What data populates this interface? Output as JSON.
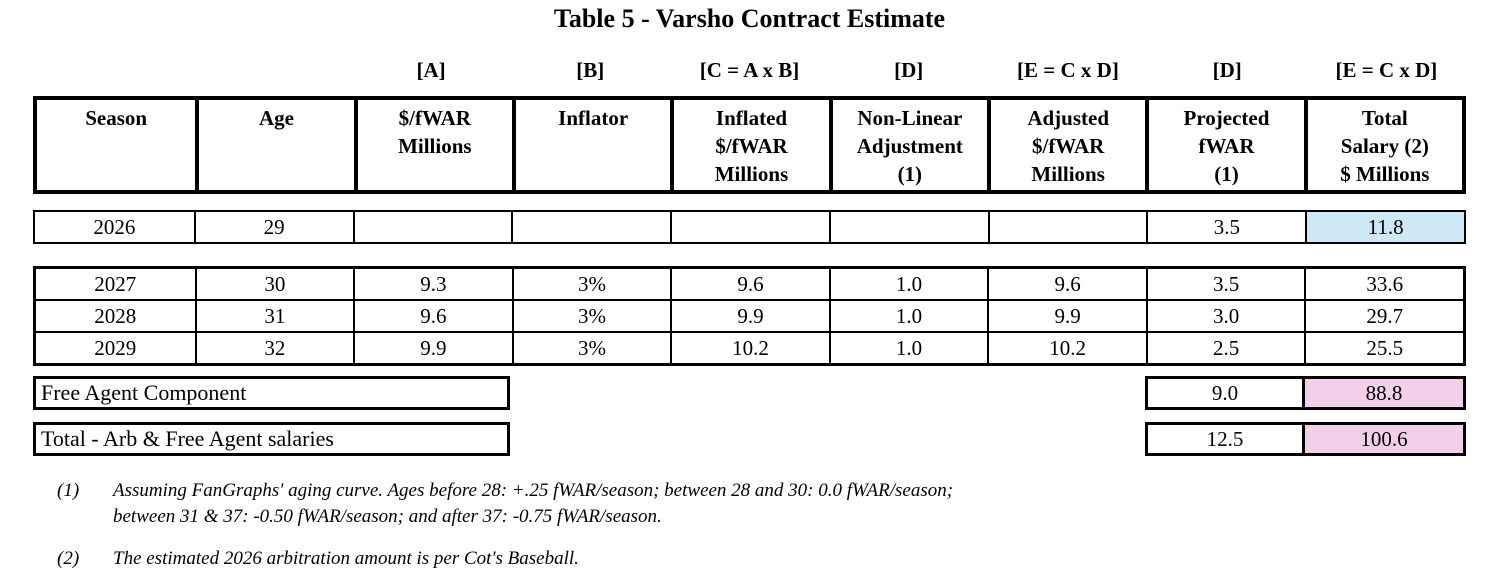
{
  "title": "Table 5 - Varsho Contract Estimate",
  "colors": {
    "highlight_blue": "#cfe8f6",
    "highlight_pink": "#f2d0eb",
    "border": "#000000"
  },
  "brackets": [
    "",
    "",
    "[A]",
    "[B]",
    "[C = A x B]",
    "[D]",
    "[E = C x D]",
    "[D]",
    "[E = C x D]"
  ],
  "headers": [
    "Season",
    "Age",
    "$/fWAR\nMillions",
    "Inflator",
    "Inflated\n$/fWAR\nMillions",
    "Non-Linear\nAdjustment\n(1)",
    "Adjusted\n$/fWAR\nMillions",
    "Projected\nfWAR\n(1)",
    "Total\nSalary (2)\n$ Millions"
  ],
  "row2026": [
    "2026",
    "29",
    "",
    "",
    "",
    "",
    "",
    "3.5",
    "11.8"
  ],
  "fa_rows": [
    [
      "2027",
      "30",
      "9.3",
      "3%",
      "9.6",
      "1.0",
      "9.6",
      "3.5",
      "33.6"
    ],
    [
      "2028",
      "31",
      "9.6",
      "3%",
      "9.9",
      "1.0",
      "9.9",
      "3.0",
      "29.7"
    ],
    [
      "2029",
      "32",
      "9.9",
      "3%",
      "10.2",
      "1.0",
      "10.2",
      "2.5",
      "25.5"
    ]
  ],
  "summary": [
    {
      "label": "Free Agent Component",
      "fwar": "9.0",
      "total": "88.8"
    },
    {
      "label": "Total - Arb & Free Agent salaries",
      "fwar": "12.5",
      "total": "100.6"
    }
  ],
  "footnotes": [
    {
      "marker": "(1)",
      "text": "Assuming FanGraphs' aging curve. Ages before 28: +.25 fWAR/season; between 28 and 30: 0.0 fWAR/season;\nbetween 31 & 37: -0.50 fWAR/season; and after 37: -0.75 fWAR/season."
    },
    {
      "marker": "(2)",
      "text": "The estimated 2026 arbitration amount is per Cot's Baseball."
    }
  ],
  "chart_data": {
    "type": "table",
    "title": "Table 5 - Varsho Contract Estimate",
    "columns": [
      "Season",
      "Age",
      "$/fWAR Millions",
      "Inflator",
      "Inflated $/fWAR Millions",
      "Non-Linear Adjustment (1)",
      "Adjusted $/fWAR Millions",
      "Projected fWAR (1)",
      "Total Salary (2) $ Millions"
    ],
    "column_formulas": [
      "",
      "",
      "[A]",
      "[B]",
      "[C = A x B]",
      "[D]",
      "[E = C x D]",
      "[D]",
      "[E = C x D]"
    ],
    "rows": [
      {
        "season": 2026,
        "age": 29,
        "dollar_per_fwar": null,
        "inflator": null,
        "inflated_dollar_per_fwar": null,
        "nonlinear_adjustment": null,
        "adjusted_dollar_per_fwar": null,
        "projected_fwar": 3.5,
        "total_salary_millions": 11.8
      },
      {
        "season": 2027,
        "age": 30,
        "dollar_per_fwar": 9.3,
        "inflator": "3%",
        "inflated_dollar_per_fwar": 9.6,
        "nonlinear_adjustment": 1.0,
        "adjusted_dollar_per_fwar": 9.6,
        "projected_fwar": 3.5,
        "total_salary_millions": 33.6
      },
      {
        "season": 2028,
        "age": 31,
        "dollar_per_fwar": 9.6,
        "inflator": "3%",
        "inflated_dollar_per_fwar": 9.9,
        "nonlinear_adjustment": 1.0,
        "adjusted_dollar_per_fwar": 9.9,
        "projected_fwar": 3.0,
        "total_salary_millions": 29.7
      },
      {
        "season": 2029,
        "age": 32,
        "dollar_per_fwar": 9.9,
        "inflator": "3%",
        "inflated_dollar_per_fwar": 10.2,
        "nonlinear_adjustment": 1.0,
        "adjusted_dollar_per_fwar": 10.2,
        "projected_fwar": 2.5,
        "total_salary_millions": 25.5
      }
    ],
    "summary_rows": [
      {
        "label": "Free Agent Component",
        "projected_fwar": 9.0,
        "total_salary_millions": 88.8
      },
      {
        "label": "Total - Arb & Free Agent salaries",
        "projected_fwar": 12.5,
        "total_salary_millions": 100.6
      }
    ],
    "highlights": {
      "blue_cell": "2026 Total Salary 11.8",
      "pink_cells": [
        "Free Agent Component 88.8",
        "Total 100.6"
      ]
    }
  }
}
